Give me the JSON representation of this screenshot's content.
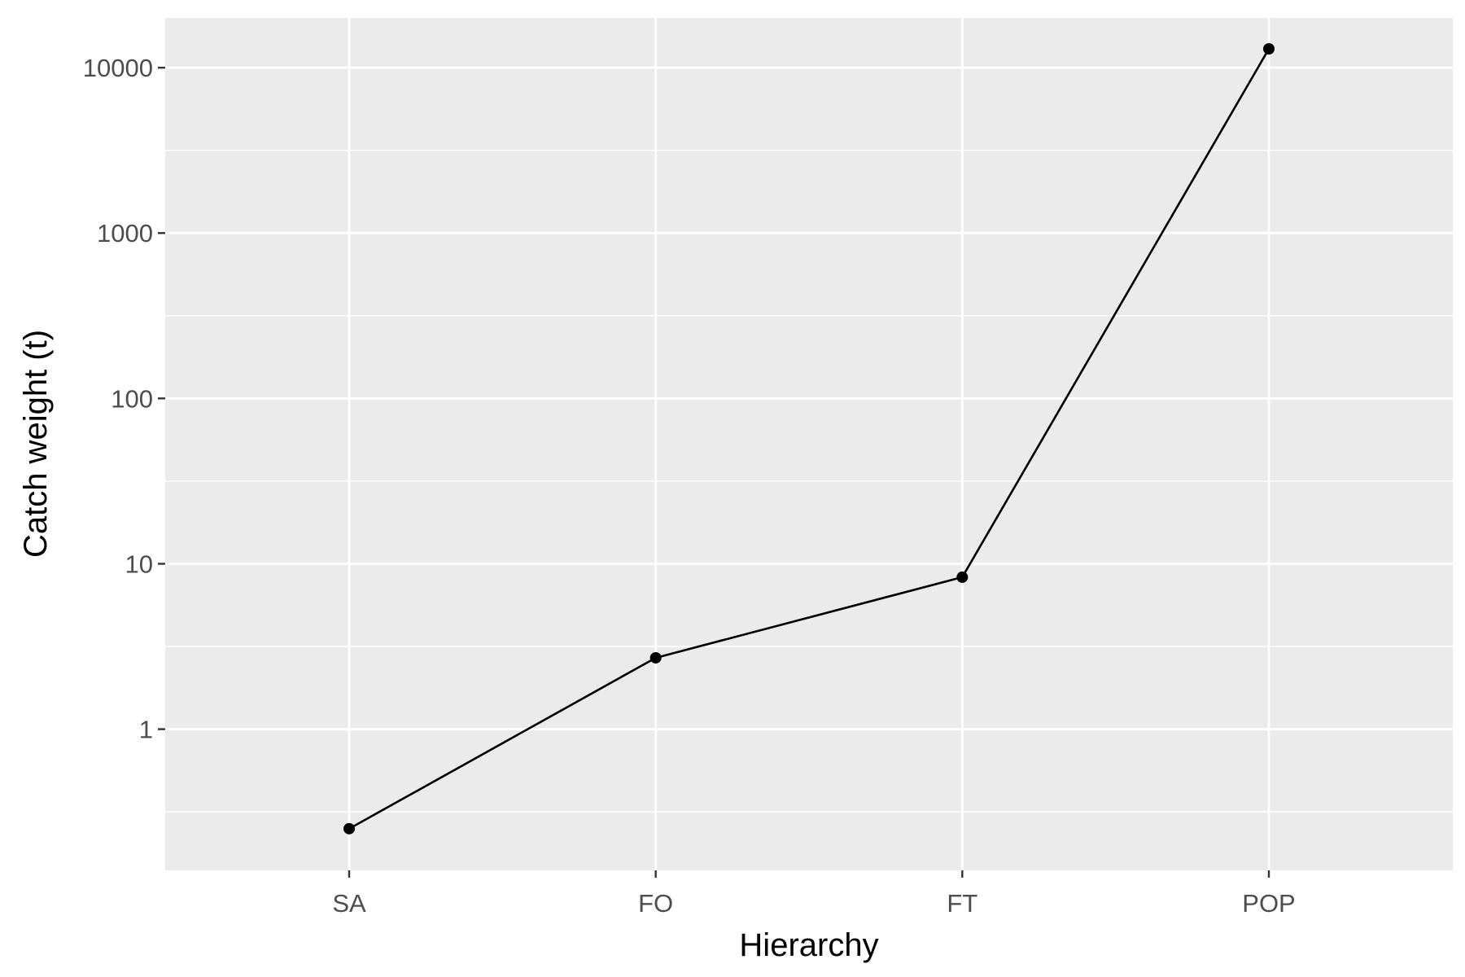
{
  "chart_data": {
    "type": "line",
    "title": "",
    "xlabel": "Hierarchy",
    "ylabel": "Catch weight (t)",
    "y_scale": "log10",
    "ylim": [
      0.14,
      20000
    ],
    "categories": [
      "SA",
      "FO",
      "FT",
      "POP"
    ],
    "series": [
      {
        "values": [
          0.25,
          2.7,
          8.3,
          13000
        ]
      }
    ],
    "y_ticks": [
      1,
      10,
      100,
      1000,
      10000
    ],
    "y_tick_labels": [
      "1",
      "10",
      "100",
      "1000",
      "10000"
    ],
    "grid": true,
    "legend": "none",
    "colors": {
      "panel_background": "#ebebeb",
      "grid": "#ffffff",
      "line": "#000000",
      "point": "#000000",
      "tick_label": "#4d4d4d",
      "axis_title": "#000000"
    }
  }
}
